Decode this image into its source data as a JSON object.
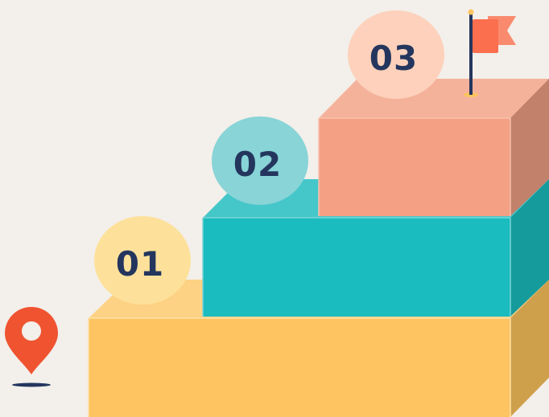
{
  "colors": {
    "background": "#f3efea",
    "step1_front": "#fec461",
    "step1_top": "#fdd284",
    "step1_side": "#cfa04c",
    "step2_front": "#1bbcbf",
    "step2_top": "#45c7ca",
    "step2_side": "#159b9c",
    "step3_front": "#f3a084",
    "step3_top": "#f5b29b",
    "step3_side": "#c2816b",
    "circle1": "#fde19b",
    "circle2": "#88d4d7",
    "circle3": "#fdd1bb",
    "number_text": "#24365e",
    "pin": "#ef5330",
    "flag": "#fb6e4e",
    "pole": "#24365e"
  },
  "steps": [
    {
      "number": "01"
    },
    {
      "number": "02"
    },
    {
      "number": "03"
    }
  ],
  "icons": {
    "start": "location-pin-icon",
    "goal": "flag-icon"
  }
}
